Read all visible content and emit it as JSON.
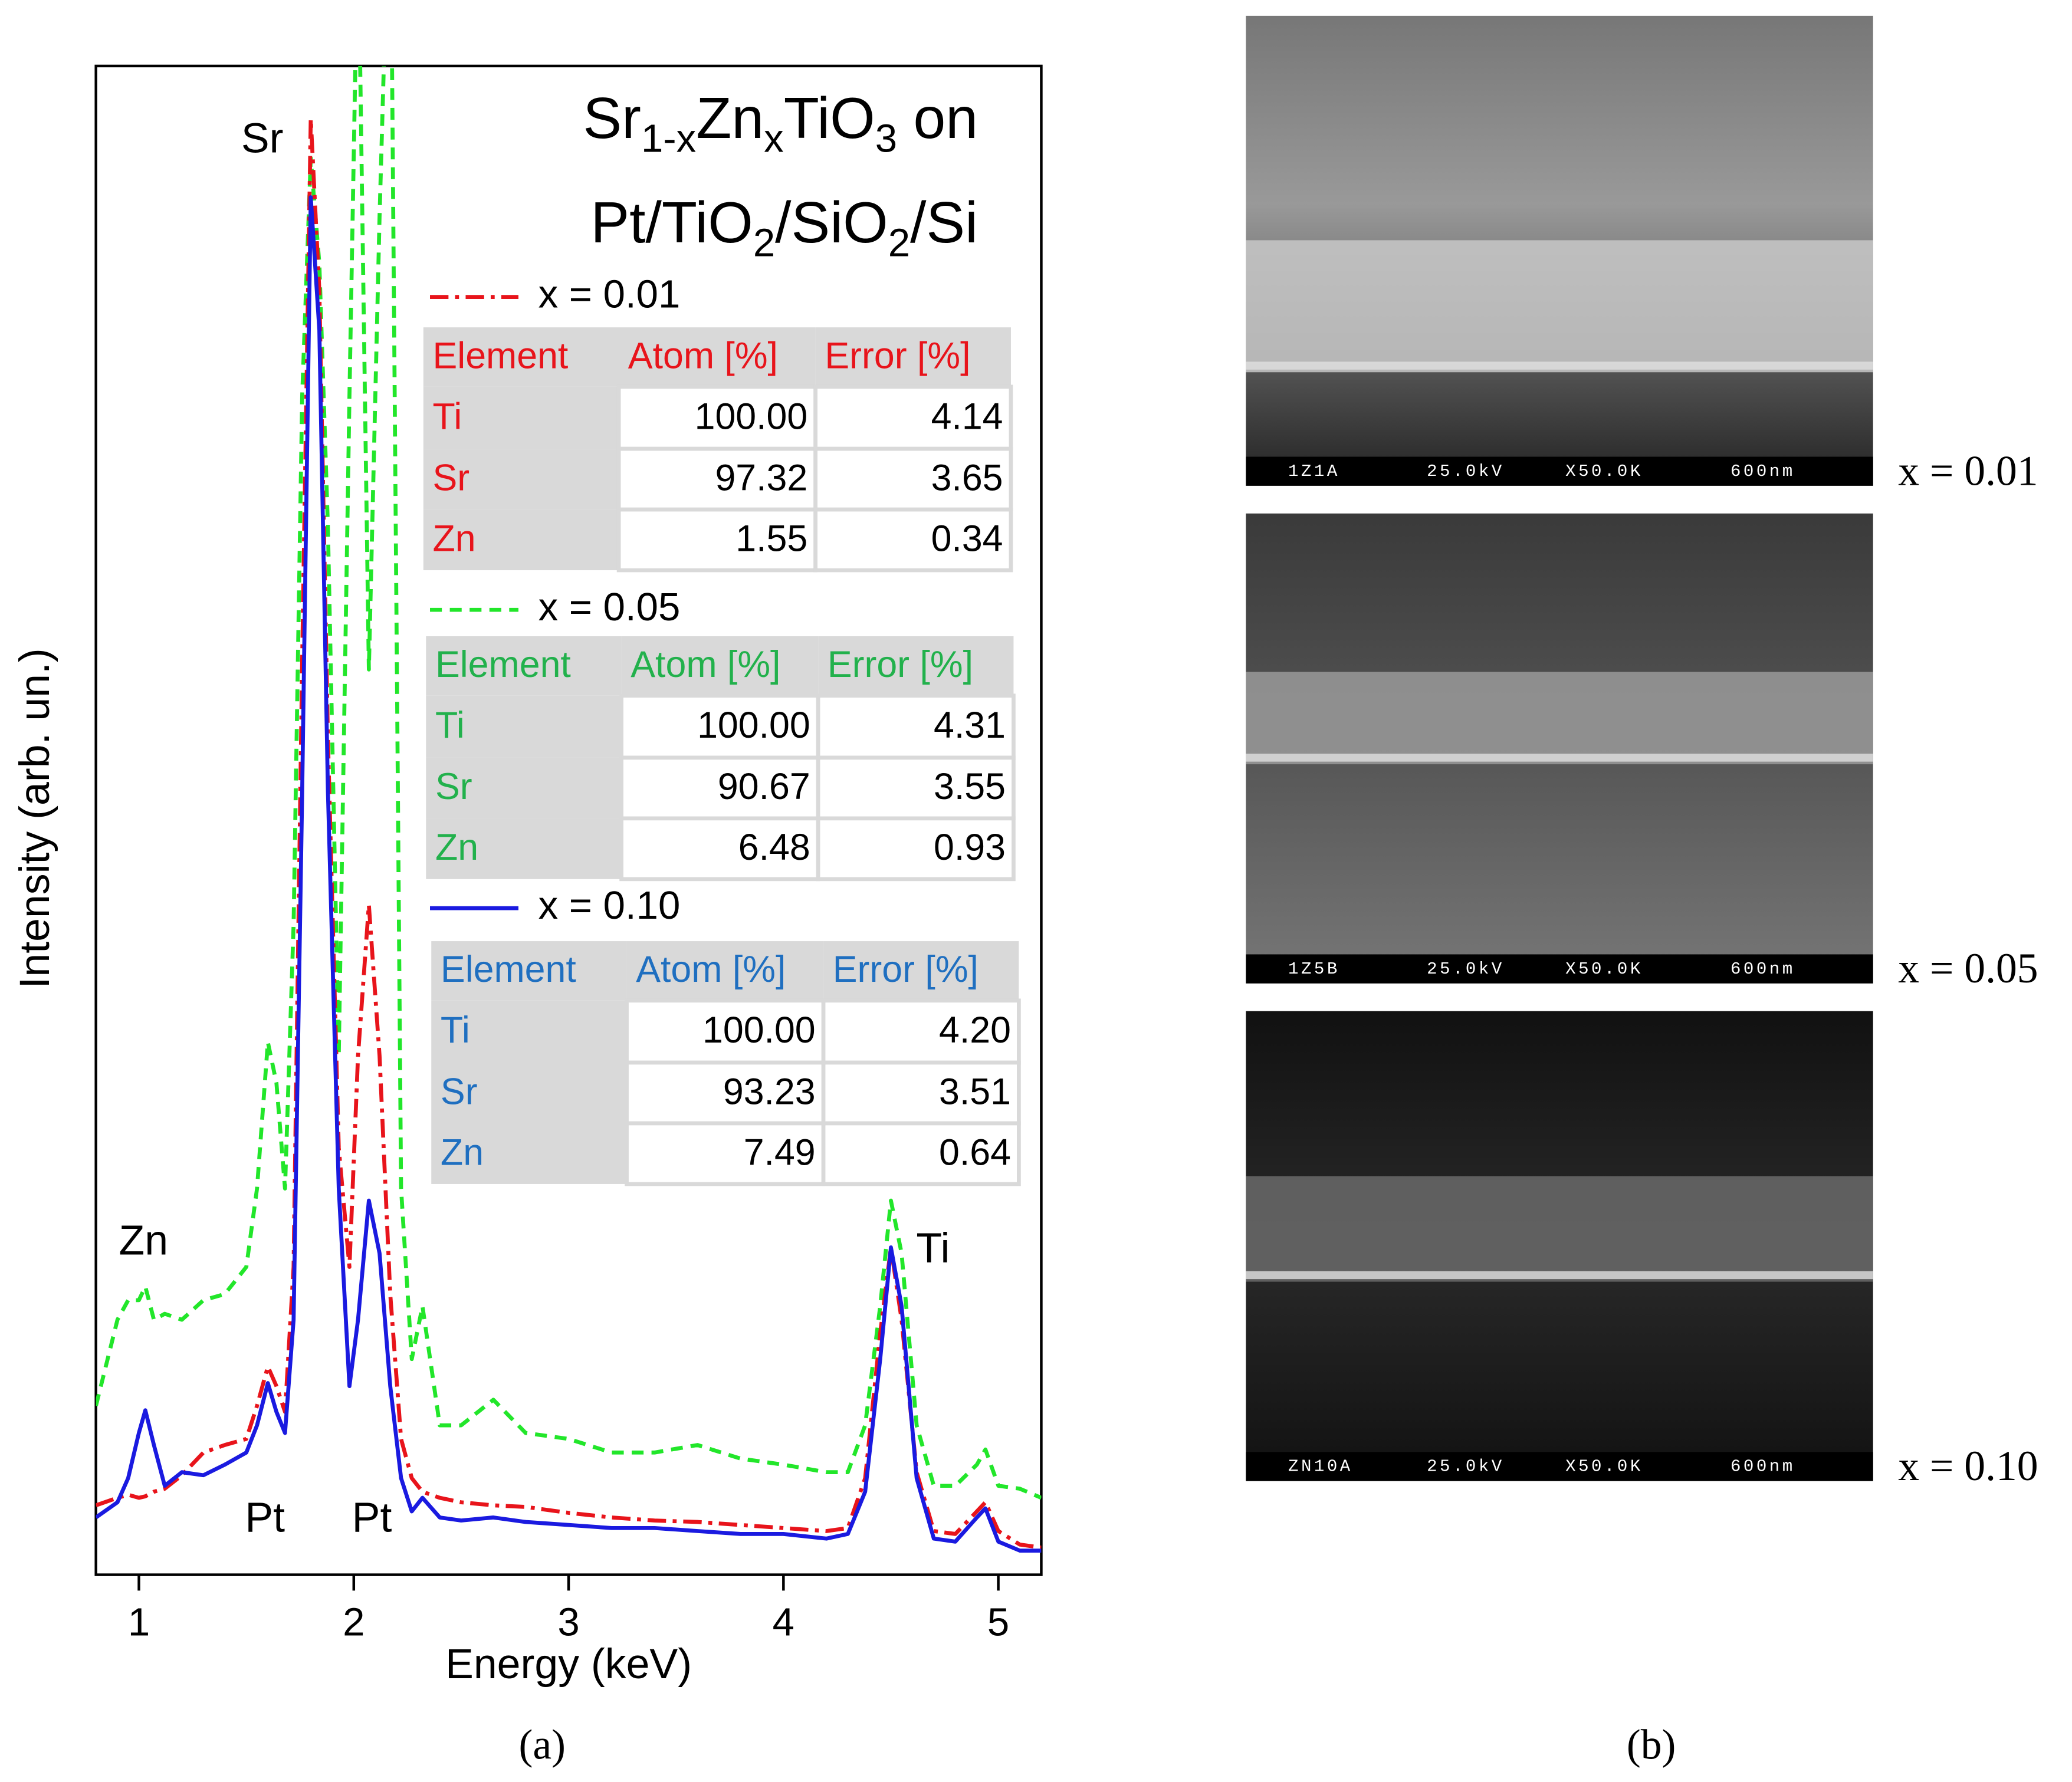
{
  "chart_data": {
    "type": "line",
    "title": [
      [
        {
          "text": "Sr"
        },
        {
          "sub": "1-x"
        },
        {
          "text": "Zn"
        },
        {
          "sub": "x"
        },
        {
          "text": "TiO"
        },
        {
          "sub": "3"
        },
        {
          "text": " on"
        }
      ],
      [
        {
          "text": "Pt/TiO"
        },
        {
          "sub": "2"
        },
        {
          "text": "/SiO"
        },
        {
          "sub": "2"
        },
        {
          "text": "/Si"
        }
      ]
    ],
    "x_label": "Energy (keV)",
    "y_label": "Intensity (arb. un.)",
    "panel_label": "(a)",
    "xlim": [
      0.8,
      5.2
    ],
    "ylim": [
      0,
      100
    ],
    "xticks": [
      1,
      2,
      3,
      4,
      5
    ],
    "x": [
      0.8,
      0.9,
      0.95,
      1.0,
      1.03,
      1.07,
      1.12,
      1.2,
      1.3,
      1.4,
      1.5,
      1.55,
      1.6,
      1.64,
      1.68,
      1.72,
      1.76,
      1.8,
      1.84,
      1.88,
      1.93,
      1.98,
      2.02,
      2.07,
      2.12,
      2.17,
      2.22,
      2.27,
      2.32,
      2.4,
      2.5,
      2.65,
      2.8,
      3.0,
      3.2,
      3.4,
      3.6,
      3.8,
      4.0,
      4.2,
      4.3,
      4.38,
      4.45,
      4.5,
      4.55,
      4.62,
      4.7,
      4.8,
      4.9,
      4.94,
      5.0,
      5.1,
      5.2
    ],
    "series": [
      {
        "name": "x = 0.01",
        "color": "#e8141b",
        "line_style": "dash-dot",
        "values": [
          4.6,
          5.1,
          5.3,
          5.1,
          5.2,
          5.5,
          5.7,
          6.6,
          8.1,
          8.6,
          9.0,
          11.2,
          13.8,
          12.5,
          10.8,
          20.4,
          60.6,
          96.5,
          85.1,
          55.4,
          28.3,
          20.4,
          34.4,
          44.4,
          34.4,
          18.6,
          9.0,
          6.4,
          5.5,
          5.1,
          4.8,
          4.6,
          4.5,
          4.1,
          3.8,
          3.6,
          3.5,
          3.3,
          3.1,
          2.9,
          3.1,
          6.4,
          16.0,
          21.7,
          16.9,
          6.8,
          2.9,
          2.7,
          4.2,
          4.8,
          2.9,
          2.0,
          1.8
        ]
      },
      {
        "name": "x = 0.05",
        "color": "#22e62a",
        "line_style": "dashed",
        "values": [
          11.2,
          16.9,
          18.2,
          18.2,
          19.1,
          16.9,
          17.3,
          16.9,
          18.2,
          18.6,
          20.4,
          25.6,
          35.3,
          32.6,
          25.6,
          43.1,
          78.1,
          93.9,
          86.9,
          69.4,
          34.4,
          78.1,
          110,
          60,
          90,
          115,
          25.6,
          14.3,
          17.8,
          9.9,
          9.9,
          11.6,
          9.4,
          9.0,
          8.1,
          8.1,
          8.6,
          7.7,
          7.3,
          6.8,
          6.8,
          9.9,
          17.8,
          24.8,
          21.3,
          9.9,
          5.9,
          5.9,
          7.3,
          8.3,
          5.9,
          5.7,
          5.1
        ]
      },
      {
        "name": "x = 0.10",
        "color": "#1a1ae0",
        "line_style": "solid",
        "values": [
          3.8,
          4.8,
          6.4,
          9.4,
          10.9,
          8.6,
          5.9,
          6.8,
          6.6,
          7.3,
          8.1,
          9.9,
          12.7,
          10.8,
          9.4,
          16.9,
          51.9,
          91.3,
          82.5,
          51.9,
          25.6,
          12.5,
          16.9,
          24.8,
          21.3,
          12.5,
          6.4,
          4.2,
          5.1,
          3.8,
          3.6,
          3.8,
          3.5,
          3.3,
          3.1,
          3.1,
          2.9,
          2.7,
          2.7,
          2.4,
          2.7,
          5.5,
          14.3,
          21.7,
          17.8,
          6.4,
          2.4,
          2.2,
          3.8,
          4.4,
          2.2,
          1.6,
          1.6
        ]
      }
    ],
    "table_colors": [
      "#e8141b",
      "#22b14c",
      "#1f6fc0"
    ],
    "tables": [
      {
        "header": [
          "Element",
          "Atom [%]",
          "Error [%]"
        ],
        "rows": [
          [
            "Ti",
            "100.00",
            "4.14"
          ],
          [
            "Sr",
            "97.32",
            "3.65"
          ],
          [
            "Zn",
            "1.55",
            "0.34"
          ]
        ]
      },
      {
        "header": [
          "Element",
          "Atom [%]",
          "Error [%]"
        ],
        "rows": [
          [
            "Ti",
            "100.00",
            "4.31"
          ],
          [
            "Sr",
            "90.67",
            "3.55"
          ],
          [
            "Zn",
            "6.48",
            "0.93"
          ]
        ]
      },
      {
        "header": [
          "Element",
          "Atom [%]",
          "Error [%]"
        ],
        "rows": [
          [
            "Ti",
            "100.00",
            "4.20"
          ],
          [
            "Sr",
            "93.23",
            "3.51"
          ],
          [
            "Zn",
            "7.49",
            "0.64"
          ]
        ]
      }
    ],
    "annotations": [
      "Sr",
      "Zn",
      "Pt",
      "Pt",
      "Ti"
    ]
  },
  "sem_panel": {
    "label": "(b)",
    "images": [
      {
        "caption": "x = 0.01",
        "bar_labels": [
          "1Z1A",
          "25.0kV",
          "X50.0K",
          "600nm"
        ]
      },
      {
        "caption": "x = 0.05",
        "bar_labels": [
          "1Z5B",
          "25.0kV",
          "X50.0K",
          "600nm"
        ]
      },
      {
        "caption": "x = 0.10",
        "bar_labels": [
          "ZN10A",
          "25.0kV",
          "X50.0K",
          "600nm"
        ]
      }
    ]
  }
}
